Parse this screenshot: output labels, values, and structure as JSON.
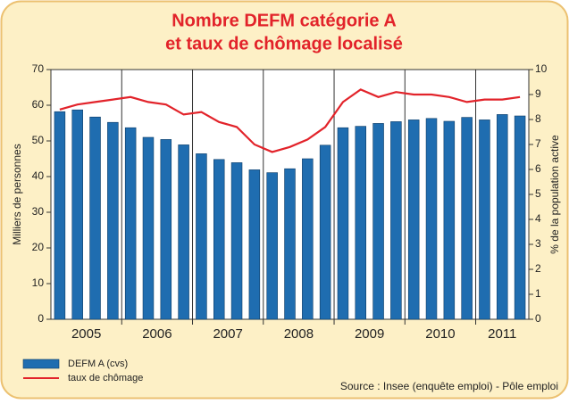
{
  "chart_data": {
    "type": "bar_line",
    "title": [
      "Nombre DEFM catégorie A",
      "et taux de chômage localisé"
    ],
    "ylabel": "Milliers de personnes",
    "y2label": "% de la population active",
    "source": "Source : Insee (enquête emploi) - Pôle emploi",
    "categories": [
      "2005",
      null,
      null,
      null,
      "2006",
      null,
      null,
      null,
      "2007",
      null,
      null,
      null,
      "2008",
      null,
      null,
      null,
      "2009",
      null,
      null,
      null,
      "2010",
      null,
      null,
      null,
      "2011",
      null,
      null
    ],
    "series": [
      {
        "name": "DEFM A (cvs)",
        "color": "#1f6db0",
        "values": [
          58.2,
          58.7,
          56.7,
          55.2,
          53.7,
          51.0,
          50.4,
          48.9,
          46.4,
          44.8,
          43.9,
          41.9,
          41.1,
          42.2,
          45.0,
          48.8,
          53.7,
          54.1,
          54.9,
          55.4,
          55.9,
          56.3,
          55.5,
          56.6,
          55.9,
          57.4,
          57.0
        ]
      },
      {
        "name": "taux de chômage",
        "color": "#e2232a",
        "axis": "y2",
        "values": [
          8.4,
          8.6,
          8.7,
          8.8,
          8.9,
          8.7,
          8.6,
          8.2,
          8.3,
          7.9,
          7.7,
          7.0,
          6.7,
          6.9,
          7.2,
          7.7,
          8.7,
          9.2,
          8.9,
          9.1,
          9.0,
          9.0,
          8.9,
          8.7,
          8.8,
          8.8,
          8.9
        ]
      }
    ],
    "ylim": [
      0,
      70
    ],
    "yticks": [
      0,
      10,
      20,
      30,
      40,
      50,
      60,
      70
    ],
    "y2lim": [
      0,
      10
    ],
    "y2ticks": [
      0,
      1,
      2,
      3,
      4,
      5,
      6,
      7,
      8,
      9,
      10
    ],
    "legend": "bottom-left"
  }
}
